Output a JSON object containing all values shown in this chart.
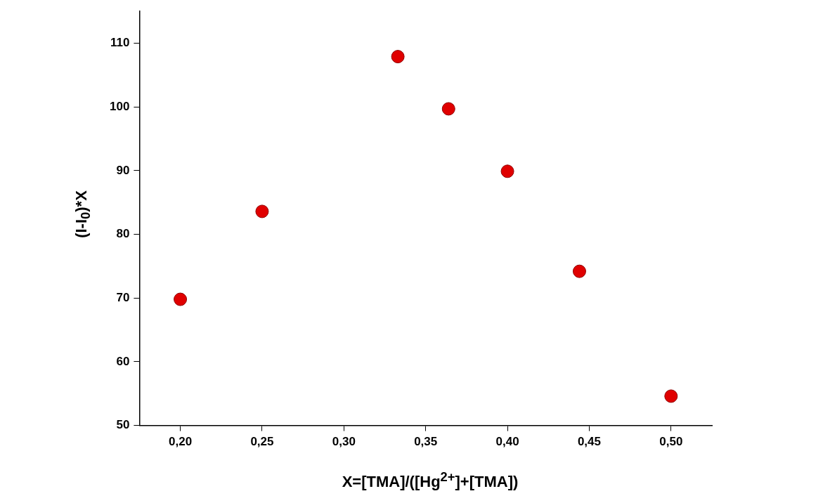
{
  "chart_data": {
    "type": "scatter",
    "xlabel": "X=[TMA]/([Hg$^{2+}$]+[TMA])",
    "ylabel": "(I-I$_{0}$)*X",
    "x": [
      0.2,
      0.25,
      0.333,
      0.364,
      0.4,
      0.444,
      0.5
    ],
    "series": [
      {
        "color": "#e00000",
        "values": [
          69.8,
          83.6,
          107.9,
          99.7,
          89.9,
          74.2,
          54.6
        ]
      }
    ],
    "xlim": [
      0.175,
      0.525
    ],
    "xticks": [
      {
        "value": 0.2,
        "label": "0,20"
      },
      {
        "value": 0.25,
        "label": "0,25"
      },
      {
        "value": 0.3,
        "label": "0,30"
      },
      {
        "value": 0.35,
        "label": "0,35"
      },
      {
        "value": 0.4,
        "label": "0,40"
      },
      {
        "value": 0.45,
        "label": "0,45"
      },
      {
        "value": 0.5,
        "label": "0,50"
      }
    ],
    "ylim": [
      50,
      115
    ],
    "yticks": [
      50,
      60,
      70,
      80,
      90,
      100,
      110
    ],
    "grid": false,
    "legend": false,
    "marker": "circle"
  }
}
